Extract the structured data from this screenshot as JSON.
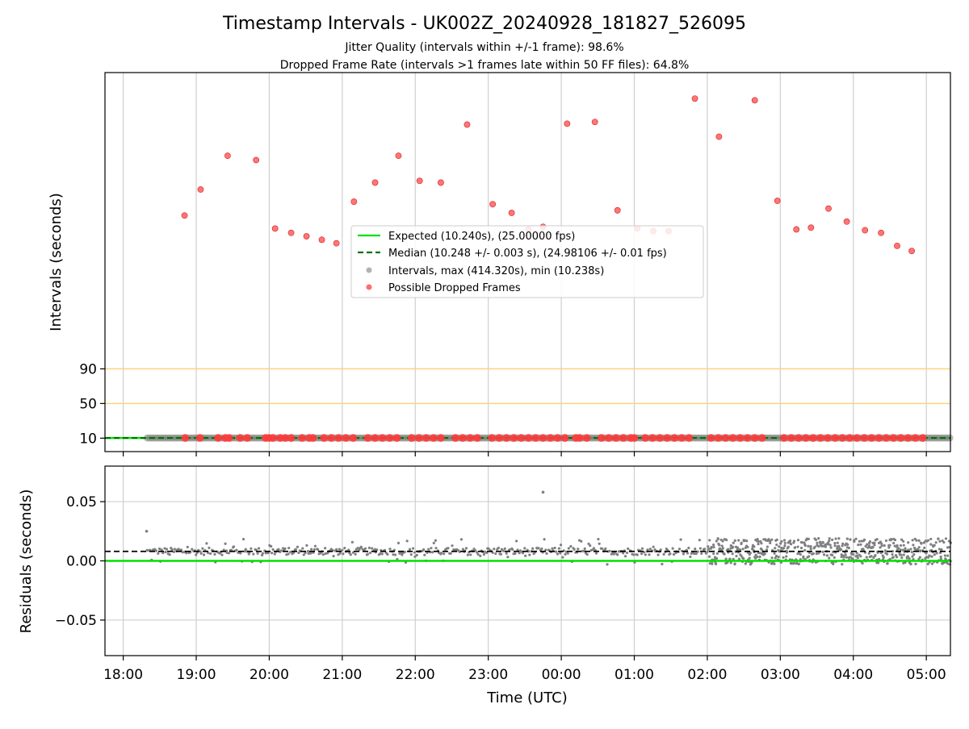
{
  "colors": {
    "expected": "#00e000",
    "median": "#007000",
    "intervals": "#808080",
    "dropped": "#ff3b3b",
    "threshold": "#ffd27a",
    "grid": "#cfcfcf",
    "residual_median": "#000000"
  },
  "chart_data": [
    {
      "type": "scatter",
      "panel": "intervals",
      "title": "Timestamp Intervals - UK002Z_20240928_181827_526095",
      "subtitle_lines": [
        "Jitter Quality (intervals within +/-1 frame): 98.6%",
        "Dropped Frame Rate (intervals >1 frames late within 50 FF files): 64.8%"
      ],
      "ylabel": "Intervals (seconds)",
      "y_ticks": [
        10,
        50,
        90
      ],
      "grid": "x",
      "legend": {
        "placement": "center",
        "entries": [
          {
            "label": "Expected (10.240s), (25.00000 fps)",
            "kind": "solid-line",
            "color_key": "expected"
          },
          {
            "label": "Median (10.248 +/- 0.003 s), (24.98106 +/- 0.01 fps)",
            "kind": "dashed-line",
            "color_key": "median"
          },
          {
            "label": "Intervals, max (414.320s), min (10.238s)",
            "kind": "marker",
            "color_key": "intervals"
          },
          {
            "label": "Possible Dropped Frames",
            "kind": "marker",
            "color_key": "dropped"
          }
        ]
      },
      "expected_interval_s": 10.24,
      "median_interval_s": 10.248,
      "threshold_lines_s": [
        50,
        90
      ],
      "intervals_range_hours": [
        18.33,
        29.33
      ],
      "dropped_frames_baseline_hours": [
        18.85,
        19.05,
        19.3,
        19.4,
        19.45,
        19.6,
        19.7,
        19.95,
        20.0,
        20.05,
        20.15,
        20.22,
        20.3,
        20.45,
        20.55,
        20.6,
        20.75,
        20.85,
        20.95,
        21.05,
        21.15,
        21.35,
        21.45,
        21.55,
        21.65,
        21.75,
        21.95,
        22.05,
        22.15,
        22.25,
        22.35,
        22.55,
        22.65,
        22.75,
        22.85,
        23.05,
        23.15,
        23.25,
        23.35,
        23.45,
        23.55,
        23.65,
        23.75,
        23.85,
        23.95,
        24.05,
        24.2,
        24.25,
        24.35,
        24.55,
        24.65,
        24.75,
        24.85,
        24.95,
        25.0,
        25.15,
        25.25,
        25.35,
        25.45,
        25.55,
        25.65,
        25.75,
        26.05,
        26.15,
        26.25,
        26.35,
        26.45,
        26.55,
        26.65,
        26.75,
        27.05,
        27.15,
        27.25,
        27.35,
        27.45,
        27.55,
        27.65,
        27.75,
        27.85,
        27.95,
        28.05,
        28.15,
        28.25,
        28.35,
        28.45,
        28.55,
        28.65,
        28.75,
        28.85,
        28.95
      ],
      "dropped_frames_upper": [
        {
          "x": 18.84,
          "y": 267
        },
        {
          "x": 19.06,
          "y": 297
        },
        {
          "x": 19.43,
          "y": 336
        },
        {
          "x": 19.82,
          "y": 331
        },
        {
          "x": 20.08,
          "y": 252
        },
        {
          "x": 20.3,
          "y": 247
        },
        {
          "x": 20.51,
          "y": 243
        },
        {
          "x": 20.72,
          "y": 239
        },
        {
          "x": 20.92,
          "y": 235
        },
        {
          "x": 21.16,
          "y": 283
        },
        {
          "x": 21.45,
          "y": 305
        },
        {
          "x": 21.77,
          "y": 336
        },
        {
          "x": 22.06,
          "y": 307
        },
        {
          "x": 22.35,
          "y": 305
        },
        {
          "x": 22.71,
          "y": 372
        },
        {
          "x": 23.06,
          "y": 280
        },
        {
          "x": 23.32,
          "y": 270
        },
        {
          "x": 23.55,
          "y": 251
        },
        {
          "x": 23.75,
          "y": 254
        },
        {
          "x": 24.08,
          "y": 373
        },
        {
          "x": 24.46,
          "y": 375
        },
        {
          "x": 24.77,
          "y": 273
        },
        {
          "x": 25.04,
          "y": 252
        },
        {
          "x": 25.26,
          "y": 249
        },
        {
          "x": 25.47,
          "y": 249
        },
        {
          "x": 25.83,
          "y": 402
        },
        {
          "x": 26.16,
          "y": 358
        },
        {
          "x": 26.65,
          "y": 400
        },
        {
          "x": 26.96,
          "y": 284
        },
        {
          "x": 27.22,
          "y": 251
        },
        {
          "x": 27.42,
          "y": 253
        },
        {
          "x": 27.66,
          "y": 275
        },
        {
          "x": 27.91,
          "y": 260
        },
        {
          "x": 28.16,
          "y": 250
        },
        {
          "x": 28.38,
          "y": 247
        },
        {
          "x": 28.6,
          "y": 232
        },
        {
          "x": 28.8,
          "y": 226
        }
      ]
    },
    {
      "type": "scatter",
      "panel": "residuals",
      "xlabel": "Time (UTC)",
      "ylabel": "Residuals (seconds)",
      "x_ticks": [
        "18:00",
        "19:00",
        "20:00",
        "21:00",
        "22:00",
        "23:00",
        "00:00",
        "01:00",
        "02:00",
        "03:00",
        "04:00",
        "05:00"
      ],
      "y_ticks": [
        "−0.05",
        "0.00",
        "0.05"
      ],
      "y_tick_values": [
        -0.05,
        0.0,
        0.05
      ],
      "xlim_hours": [
        17.75,
        29.33
      ],
      "ylim": [
        -0.08,
        0.08
      ],
      "grid": "both",
      "expected_residual": 0.0,
      "median_residual": 0.008,
      "residual_outliers": [
        {
          "x": 18.32,
          "y": 0.025
        },
        {
          "x": 23.75,
          "y": 0.058
        }
      ]
    }
  ]
}
